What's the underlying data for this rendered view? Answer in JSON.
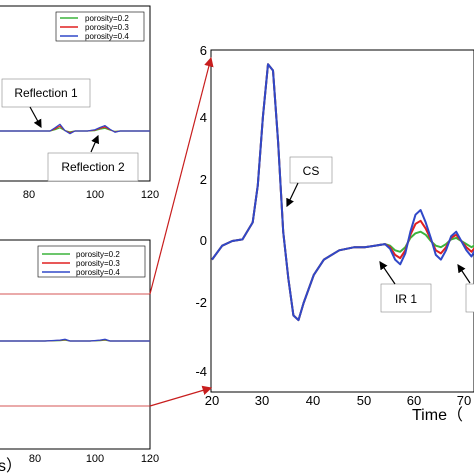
{
  "colors": {
    "green": "#3cb43c",
    "red": "#e02020",
    "blue": "#3048c8",
    "guide": "#c81e1e"
  },
  "chart_data": [
    {
      "panel": "top-left",
      "type": "line",
      "xlim": [
        60,
        120
      ],
      "xticks": [
        "80",
        "100",
        "120"
      ],
      "legend": {
        "placement": "top-right",
        "entries": [
          "porosity=0.2",
          "porosity=0.3",
          "porosity=0.4"
        ]
      },
      "annotations": [
        "Reflection 1",
        "Reflection 2"
      ],
      "x": [
        60,
        75,
        80,
        82,
        84,
        86,
        88,
        90,
        92,
        95,
        98,
        100,
        102,
        104,
        106,
        108,
        112,
        120
      ],
      "series": [
        {
          "name": "porosity=0.2",
          "values": [
            0,
            0,
            0,
            0.15,
            0.35,
            0.05,
            -0.1,
            0,
            0,
            0,
            0.05,
            0.2,
            0.3,
            0.1,
            -0.05,
            0,
            0,
            0
          ]
        },
        {
          "name": "porosity=0.3",
          "values": [
            0,
            0,
            0,
            0.25,
            0.55,
            0.05,
            -0.2,
            0,
            0,
            0,
            0.1,
            0.3,
            0.45,
            0.15,
            -0.1,
            0,
            0,
            0
          ]
        },
        {
          "name": "porosity=0.4",
          "values": [
            0,
            0,
            0,
            0.35,
            0.75,
            0.05,
            -0.3,
            0,
            0,
            0,
            0.15,
            0.4,
            0.6,
            0.2,
            -0.15,
            0,
            0,
            0
          ]
        }
      ]
    },
    {
      "panel": "bottom-left",
      "type": "line",
      "xlim": [
        60,
        120
      ],
      "xticks": [
        "80",
        "100",
        "120"
      ],
      "xlabel_fragment": "s）",
      "legend": {
        "placement": "top-right",
        "entries": [
          "porosity=0.2",
          "porosity=0.3",
          "porosity=0.4"
        ]
      },
      "x": [
        60,
        78,
        84,
        86,
        88,
        96,
        100,
        102,
        104,
        110,
        120
      ],
      "series": [
        {
          "name": "porosity=0.2",
          "values": [
            0,
            0,
            0.05,
            0.1,
            0,
            0,
            0.05,
            0.1,
            0,
            0,
            0
          ]
        },
        {
          "name": "porosity=0.3",
          "values": [
            0,
            0,
            0.08,
            0.15,
            0,
            0,
            0.08,
            0.15,
            0,
            0,
            0
          ]
        },
        {
          "name": "porosity=0.4",
          "values": [
            0,
            0,
            0.1,
            0.2,
            0,
            0,
            0.1,
            0.2,
            0,
            0,
            0
          ]
        }
      ]
    },
    {
      "panel": "right",
      "type": "line",
      "xlim": [
        20,
        72
      ],
      "ylim": [
        -4,
        6
      ],
      "xticks": [
        "20",
        "30",
        "40",
        "50",
        "60",
        "70"
      ],
      "yticks": [
        "-4",
        "-2",
        "0",
        "2",
        "4",
        "6"
      ],
      "xlabel": "Time（",
      "annotations": [
        "CS",
        "IR 1"
      ],
      "x": [
        20,
        22,
        24,
        26,
        28,
        29,
        30,
        31,
        32,
        33,
        34,
        35,
        36,
        37,
        38,
        40,
        42,
        45,
        48,
        50,
        52,
        54,
        55,
        56,
        57,
        58,
        59,
        60,
        61,
        62,
        63,
        64,
        65,
        66,
        67,
        68,
        69,
        70,
        71,
        72
      ],
      "series": [
        {
          "name": "porosity=0.2",
          "values": [
            -0.6,
            -0.15,
            0,
            0.05,
            0.6,
            1.8,
            4,
            5.7,
            5.5,
            3.2,
            0.3,
            -1.2,
            -2.4,
            -2.55,
            -2,
            -1.1,
            -0.6,
            -0.3,
            -0.2,
            -0.2,
            -0.15,
            -0.1,
            -0.15,
            -0.3,
            -0.35,
            -0.2,
            0.1,
            0.25,
            0.3,
            0.2,
            0,
            -0.15,
            -0.2,
            -0.1,
            0.05,
            0.1,
            0,
            -0.1,
            -0.2,
            -0.1
          ]
        },
        {
          "name": "porosity=0.3",
          "values": [
            -0.6,
            -0.15,
            0,
            0.05,
            0.6,
            1.8,
            4,
            5.7,
            5.5,
            3.2,
            0.3,
            -1.2,
            -2.4,
            -2.55,
            -2,
            -1.1,
            -0.6,
            -0.3,
            -0.2,
            -0.2,
            -0.15,
            -0.1,
            -0.2,
            -0.45,
            -0.55,
            -0.3,
            0.2,
            0.55,
            0.65,
            0.4,
            0.05,
            -0.3,
            -0.4,
            -0.2,
            0.1,
            0.2,
            0,
            -0.2,
            -0.35,
            -0.15
          ]
        },
        {
          "name": "porosity=0.4",
          "values": [
            -0.6,
            -0.15,
            0,
            0.05,
            0.6,
            1.8,
            4,
            5.7,
            5.5,
            3.2,
            0.3,
            -1.2,
            -2.4,
            -2.55,
            -2,
            -1.1,
            -0.6,
            -0.3,
            -0.2,
            -0.2,
            -0.15,
            -0.1,
            -0.25,
            -0.6,
            -0.75,
            -0.4,
            0.3,
            0.85,
            1,
            0.6,
            0.1,
            -0.45,
            -0.6,
            -0.3,
            0.15,
            0.3,
            0,
            -0.3,
            -0.5,
            -0.2
          ]
        }
      ]
    }
  ]
}
